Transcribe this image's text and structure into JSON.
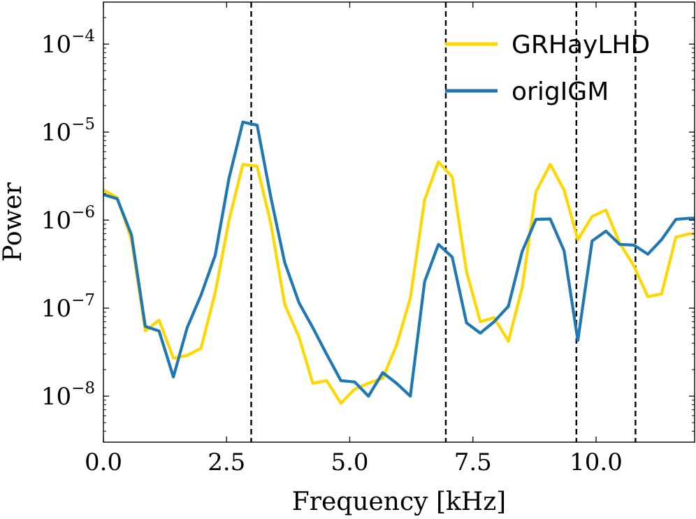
{
  "chart_data": {
    "type": "line",
    "title": "",
    "xlabel": "Frequency [kHz]",
    "ylabel": "Power",
    "xlim": [
      0.0,
      12.0
    ],
    "ylim": [
      3e-09,
      0.0003
    ],
    "yscale": "log",
    "x_ticks": [
      0.0,
      2.5,
      5.0,
      7.5,
      10.0
    ],
    "x_tick_labels": [
      "0.0",
      "2.5",
      "5.0",
      "7.5",
      "10.0"
    ],
    "y_ticks": [
      {
        "value": 1e-08,
        "base": "10",
        "exp": "−8"
      },
      {
        "value": 1e-07,
        "base": "10",
        "exp": "−7"
      },
      {
        "value": 1e-06,
        "base": "10",
        "exp": "−6"
      },
      {
        "value": 1e-05,
        "base": "10",
        "exp": "−5"
      },
      {
        "value": 0.0001,
        "base": "10",
        "exp": "−4"
      }
    ],
    "vlines": [
      3.0,
      6.95,
      9.6,
      10.8
    ],
    "legend_position": "top-right",
    "series": [
      {
        "name": "GRHayLHD",
        "color": "#FFD700",
        "x": [
          0.0,
          0.28,
          0.57,
          0.85,
          1.13,
          1.42,
          1.7,
          1.98,
          2.27,
          2.55,
          2.83,
          3.12,
          3.4,
          3.68,
          3.97,
          4.25,
          4.53,
          4.82,
          5.1,
          5.38,
          5.67,
          5.95,
          6.23,
          6.52,
          6.8,
          7.08,
          7.37,
          7.65,
          7.93,
          8.22,
          8.5,
          8.78,
          9.07,
          9.35,
          9.63,
          9.92,
          10.2,
          10.48,
          10.77,
          11.05,
          11.33,
          11.62,
          11.9,
          12.0
        ],
        "y": [
          2.2e-06,
          1.8e-06,
          6e-07,
          5.5e-08,
          7.3e-08,
          2.7e-08,
          2.9e-08,
          3.5e-08,
          1.5e-07,
          1e-06,
          4.3e-06,
          4.1e-06,
          9e-07,
          1.1e-07,
          4.7e-08,
          1.4e-08,
          1.5e-08,
          8.3e-09,
          1.2e-08,
          1.4e-08,
          1.6e-08,
          3.8e-08,
          1.3e-07,
          1.7e-06,
          4.6e-06,
          3.1e-06,
          2.6e-07,
          7e-08,
          7.8e-08,
          4.2e-08,
          1.7e-07,
          2.1e-06,
          4.3e-06,
          2.2e-06,
          6e-07,
          1.1e-06,
          1.3e-06,
          5.5e-07,
          3e-07,
          1.35e-07,
          1.45e-07,
          6.4e-07,
          7e-07,
          7e-07
        ]
      },
      {
        "name": "origIGM",
        "color": "#1F77B4",
        "x": [
          0.0,
          0.28,
          0.57,
          0.85,
          1.13,
          1.42,
          1.7,
          1.98,
          2.27,
          2.55,
          2.83,
          3.12,
          3.4,
          3.68,
          3.97,
          4.25,
          4.53,
          4.82,
          5.1,
          5.38,
          5.67,
          5.95,
          6.23,
          6.52,
          6.8,
          7.08,
          7.37,
          7.65,
          7.93,
          8.22,
          8.5,
          8.78,
          9.07,
          9.35,
          9.63,
          9.92,
          10.2,
          10.48,
          10.77,
          11.05,
          11.33,
          11.62,
          11.9,
          12.0
        ],
        "y": [
          1.95e-06,
          1.75e-06,
          6.8e-07,
          6.2e-08,
          5.5e-08,
          1.65e-08,
          6e-08,
          1.4e-07,
          4e-07,
          3e-06,
          1.3e-05,
          1.2e-05,
          1.8e-06,
          3.3e-07,
          1.15e-07,
          6e-08,
          3e-08,
          1.5e-08,
          1.45e-08,
          1e-08,
          1.85e-08,
          1.4e-08,
          1e-08,
          2e-07,
          5.3e-07,
          3.8e-07,
          6.8e-08,
          5.2e-08,
          7e-08,
          1.05e-07,
          4.4e-07,
          1.02e-06,
          1.03e-06,
          4.5e-07,
          4.3e-08,
          5.8e-07,
          7.5e-07,
          5.3e-07,
          5.2e-07,
          4.1e-07,
          6e-07,
          1.02e-06,
          1.05e-06,
          1.05e-06
        ]
      }
    ]
  }
}
